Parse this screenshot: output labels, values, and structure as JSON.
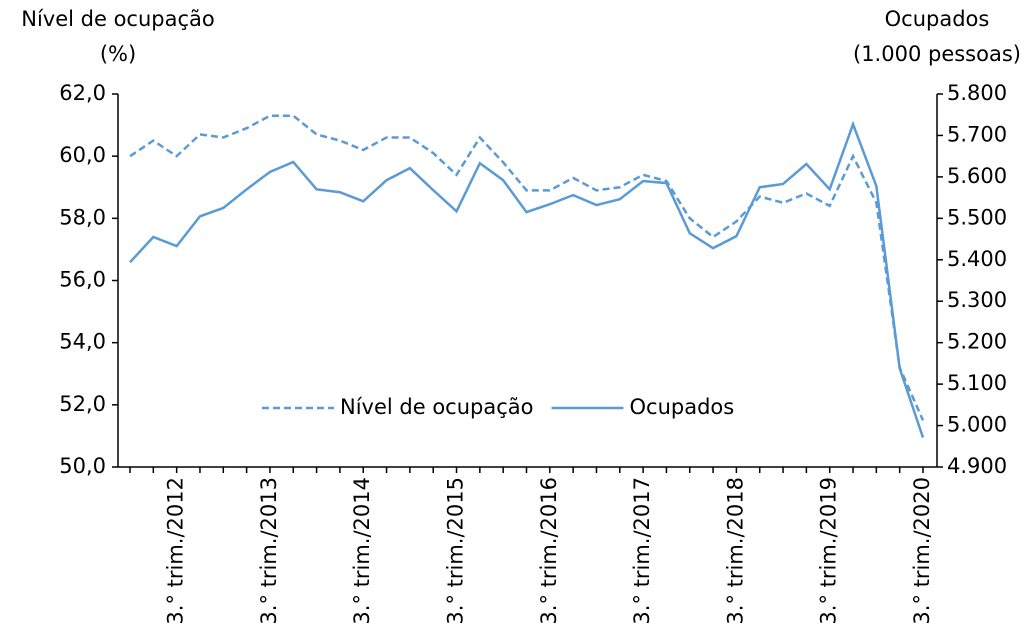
{
  "chart_data": {
    "type": "line",
    "y_label": [
      "Nível de ocupação",
      "(%)"
    ],
    "y2_label": [
      "Ocupados",
      "(1.000 pessoas)"
    ],
    "categories": [
      null,
      null,
      "3.° trim./2012",
      null,
      null,
      null,
      "3.° trim./2013",
      null,
      null,
      null,
      "3.° trim./2014",
      null,
      null,
      null,
      "3.° trim./2015",
      null,
      null,
      null,
      "3.° trim./2016",
      null,
      null,
      null,
      "3.° trim./2017",
      null,
      null,
      null,
      "3.° trim./2018",
      null,
      null,
      null,
      "3.° trim./2019",
      null,
      null,
      null,
      "3.° trim./2020"
    ],
    "series": [
      {
        "name": "Nível de ocupação",
        "color": "#5b9bd5",
        "dashed": true,
        "values": [
          60.0,
          60.5,
          60.0,
          60.7,
          60.6,
          60.9,
          61.3,
          61.3,
          60.7,
          60.5,
          60.2,
          60.6,
          60.6,
          60.1,
          59.4,
          60.6,
          59.8,
          58.9,
          58.9,
          59.3,
          58.9,
          59.0,
          59.4,
          59.2,
          58.0,
          57.4,
          57.9,
          58.7,
          58.5,
          58.8,
          58.4,
          60.0,
          58.5,
          53.2,
          51.5
        ]
      },
      {
        "name": "Ocupados",
        "color": "#5b9bd5",
        "axis": "y2",
        "values": [
          5394,
          5455,
          5433,
          5505,
          5525,
          5570,
          5612,
          5636,
          5570,
          5563,
          5541,
          5592,
          5621,
          5568,
          5517,
          5633,
          5592,
          5515,
          5534,
          5556,
          5532,
          5546,
          5590,
          5585,
          5464,
          5428,
          5457,
          5575,
          5583,
          5631,
          5570,
          5727,
          5578,
          5138,
          4971
        ]
      }
    ],
    "ylim": [
      50,
      62
    ],
    "yticks": [
      {
        "value": 50,
        "label": "50,0"
      },
      {
        "value": 52,
        "label": "52,0"
      },
      {
        "value": 54,
        "label": "54,0"
      },
      {
        "value": 56,
        "label": "56,0"
      },
      {
        "value": 58,
        "label": "58,0"
      },
      {
        "value": 60,
        "label": "60,0"
      },
      {
        "value": 62,
        "label": "62,0"
      }
    ],
    "y2lim": [
      4900,
      5800
    ],
    "y2ticks": [
      {
        "value": 4900,
        "label": "4.900"
      },
      {
        "value": 5000,
        "label": "5.000"
      },
      {
        "value": 5100,
        "label": "5.100"
      },
      {
        "value": 5200,
        "label": "5.200"
      },
      {
        "value": 5300,
        "label": "5.300"
      },
      {
        "value": 5400,
        "label": "5.400"
      },
      {
        "value": 5500,
        "label": "5.500"
      },
      {
        "value": 5600,
        "label": "5.600"
      },
      {
        "value": 5700,
        "label": "5.700"
      },
      {
        "value": 5800,
        "label": "5.800"
      }
    ],
    "legend": "bottom-center"
  }
}
